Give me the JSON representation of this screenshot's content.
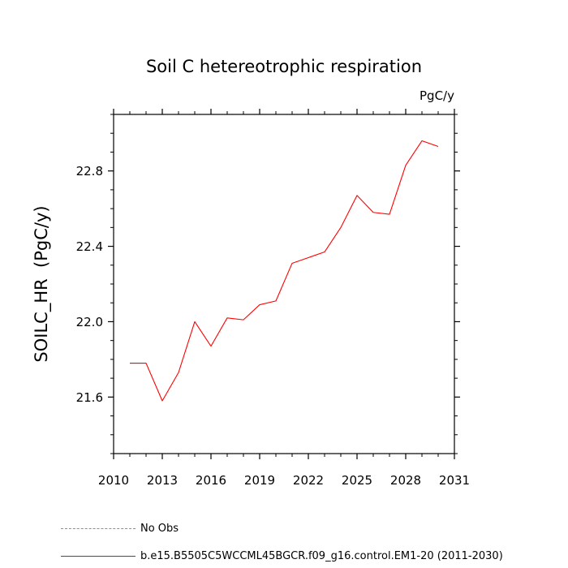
{
  "chart_data": {
    "type": "line",
    "title": "Soil C hetereotrophic respiration",
    "units": "PgC/y",
    "xlabel": "",
    "ylabel": "SOILC_HR  (PgC/y)",
    "xlim": [
      2010,
      2031
    ],
    "ylim": [
      21.3,
      23.1
    ],
    "x_ticks": [
      2010,
      2013,
      2016,
      2019,
      2022,
      2025,
      2028,
      2031
    ],
    "y_ticks": [
      "21.6",
      "22.0",
      "22.4",
      "22.8"
    ],
    "y_tick_values": [
      21.6,
      22.0,
      22.4,
      22.8
    ],
    "grid": false,
    "legend_position": "bottom-left",
    "series": [
      {
        "name": "b.e15.B5505C5WCCML45BGCR.f09_g16.control.EM1-20 (2011-2030)",
        "color": "#ff0000",
        "style": "solid",
        "x": [
          2011,
          2012,
          2013,
          2014,
          2015,
          2016,
          2017,
          2018,
          2019,
          2020,
          2021,
          2022,
          2023,
          2024,
          2025,
          2026,
          2027,
          2028,
          2029,
          2030
        ],
        "y": [
          21.78,
          21.78,
          21.58,
          21.73,
          22.0,
          21.87,
          22.02,
          22.01,
          22.09,
          22.11,
          22.31,
          22.34,
          22.37,
          22.5,
          22.67,
          22.58,
          22.57,
          22.83,
          22.96,
          22.93
        ]
      }
    ],
    "legend": [
      {
        "label": "No Obs",
        "color": "#8080ff",
        "style": "dashed"
      },
      {
        "label": "b.e15.B5505C5WCCML45BGCR.f09_g16.control.EM1-20 (2011-2030)",
        "color": "#ff0000",
        "style": "solid"
      }
    ]
  }
}
